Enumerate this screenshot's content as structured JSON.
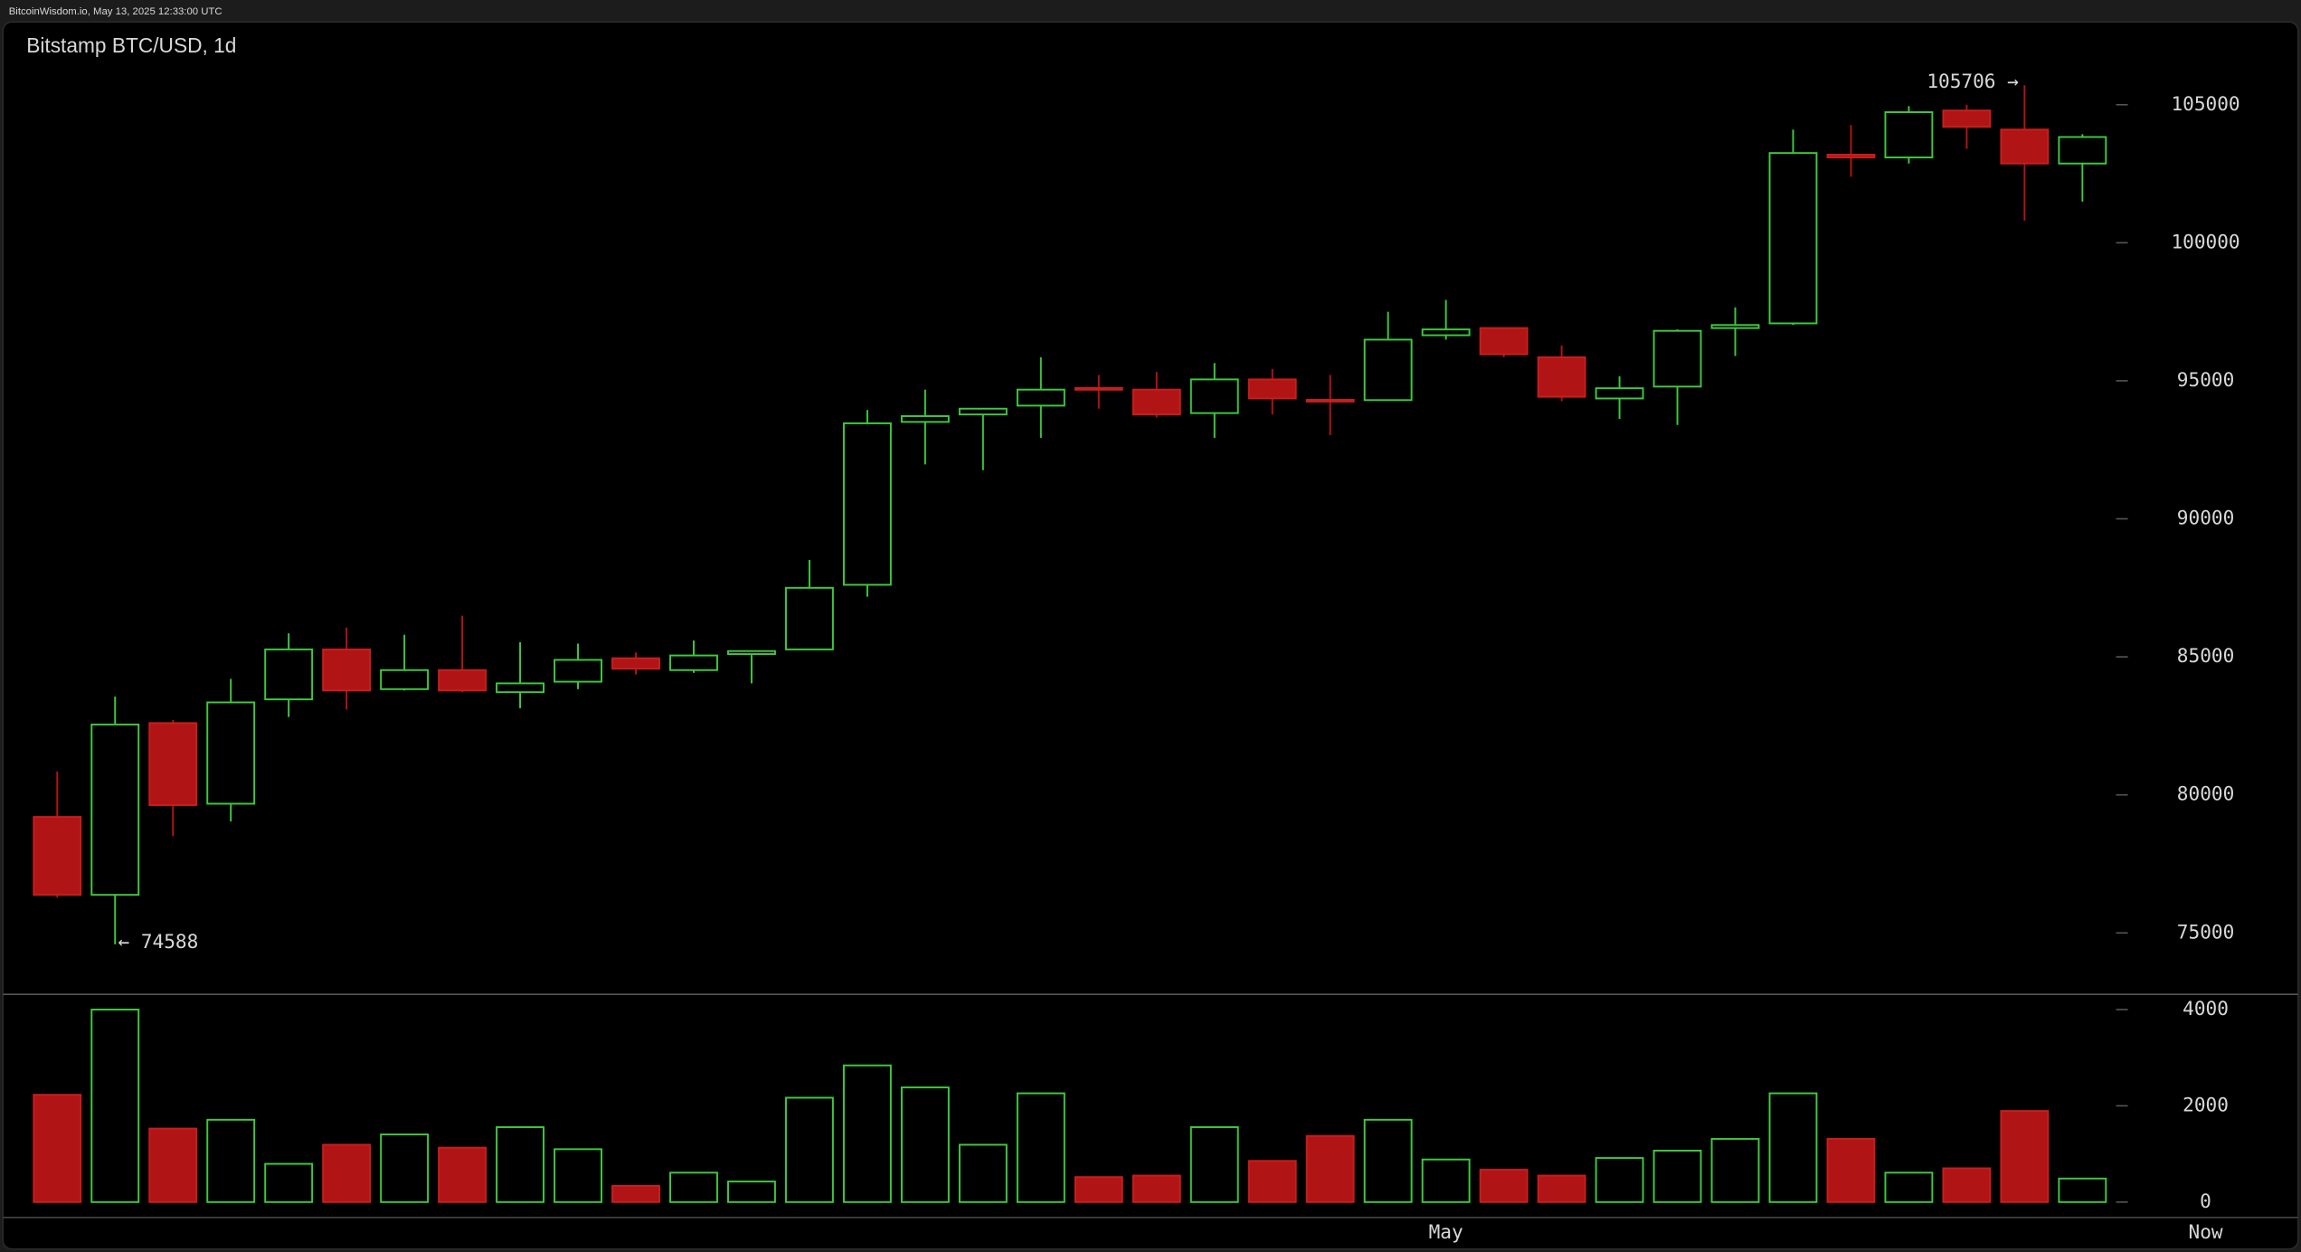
{
  "header": {
    "source": "BitcoinWisdom.io, May 13, 2025 12:33:00 UTC"
  },
  "chart_data": [
    {
      "type": "candlestick",
      "title": "Bitstamp BTC/USD, 1d",
      "categories": [
        null,
        null,
        null,
        null,
        null,
        null,
        null,
        null,
        null,
        null,
        null,
        null,
        null,
        null,
        null,
        null,
        null,
        null,
        null,
        null,
        null,
        null,
        null,
        null,
        "May",
        null,
        null,
        null,
        null,
        null,
        null,
        null,
        null,
        null,
        null,
        null
      ],
      "open": [
        79200,
        76380,
        82600,
        79680,
        83460,
        85270,
        83830,
        84520,
        83720,
        84100,
        84950,
        84520,
        85100,
        85270,
        87610,
        93510,
        93780,
        94100,
        94740,
        94680,
        93830,
        95050,
        94310,
        94300,
        96650,
        96910,
        95850,
        94360,
        94790,
        96910,
        97080,
        103190,
        103090,
        104790,
        104100,
        102870
      ],
      "high": [
        80850,
        83560,
        82710,
        84200,
        85850,
        86060,
        85800,
        86490,
        85530,
        85480,
        85160,
        85590,
        85210,
        88510,
        93940,
        94680,
        93990,
        95850,
        95210,
        95320,
        95640,
        95430,
        95210,
        97500,
        97930,
        96910,
        96280,
        95160,
        96860,
        97660,
        104100,
        104260,
        104950,
        105000,
        105706,
        103930
      ],
      "low": [
        76280,
        74588,
        78510,
        79040,
        82820,
        83090,
        83780,
        83720,
        83140,
        83830,
        84360,
        84420,
        84040,
        85270,
        87180,
        91970,
        91760,
        92930,
        93990,
        93670,
        92930,
        93780,
        93030,
        94300,
        96490,
        95850,
        94260,
        93620,
        93400,
        95900,
        97020,
        102390,
        102870,
        103400,
        100800,
        101490
      ],
      "close": [
        76380,
        82550,
        79630,
        83350,
        85270,
        83780,
        84520,
        83780,
        84040,
        84890,
        84570,
        85050,
        85210,
        87500,
        93460,
        93720,
        93990,
        94680,
        94700,
        93780,
        95050,
        94360,
        94260,
        96490,
        96860,
        95960,
        94420,
        94730,
        96810,
        97020,
        103250,
        103090,
        104730,
        104200,
        102870,
        103830
      ],
      "ylim": [
        72800,
        106400
      ],
      "yticks": [
        75000,
        80000,
        85000,
        90000,
        95000,
        100000,
        105000
      ],
      "high_label": "105706 →",
      "low_label": "← 74588",
      "now_label": "Now",
      "up_color": "#3fc93f",
      "down_color": "#b11414"
    },
    {
      "type": "volume",
      "values": [
        2229,
        4000,
        1527,
        1710,
        794,
        1191,
        1405,
        1130,
        1557,
        1099,
        336,
        611,
        427,
        2168,
        2840,
        2382,
        1191,
        2260,
        519,
        550,
        1557,
        855,
        1374,
        1710,
        885,
        672,
        550,
        916,
        1069,
        1313,
        2260,
        1313,
        611,
        702,
        1893,
        489
      ],
      "ylim": [
        0,
        4300
      ],
      "yticks": [
        0,
        2000,
        4000
      ]
    }
  ]
}
